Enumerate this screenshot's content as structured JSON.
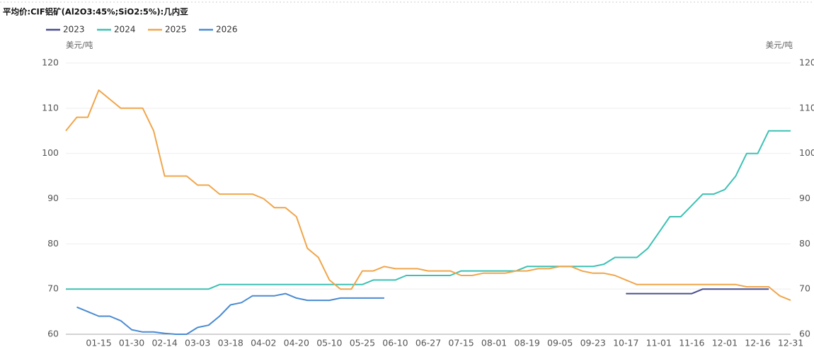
{
  "chart_data": {
    "type": "line",
    "title": "平均价:CIF铝矿(Al2O3:45%;SiO2:5%):几内亚",
    "y_label": "美元/吨",
    "y2_label": "美元/吨",
    "categories": [
      null,
      null,
      null,
      "01-15",
      null,
      null,
      "01-30",
      null,
      null,
      "02-14",
      null,
      null,
      "03-03",
      null,
      null,
      "03-18",
      null,
      null,
      "04-02",
      null,
      null,
      "04-20",
      null,
      null,
      "05-10",
      null,
      null,
      "05-25",
      null,
      null,
      "06-10",
      null,
      null,
      "06-27",
      null,
      null,
      "07-15",
      null,
      null,
      "08-01",
      null,
      null,
      "08-19",
      null,
      null,
      "09-05",
      null,
      null,
      "09-23",
      null,
      null,
      "10-17",
      null,
      null,
      "11-01",
      null,
      null,
      "11-16",
      null,
      null,
      "12-01",
      null,
      null,
      "12-16",
      null,
      null,
      "12-31"
    ],
    "series": [
      {
        "name": "2023",
        "color": "#4a4f8f",
        "values": [
          null,
          null,
          null,
          null,
          null,
          null,
          null,
          null,
          null,
          null,
          null,
          null,
          null,
          null,
          null,
          null,
          null,
          null,
          null,
          null,
          null,
          null,
          null,
          null,
          null,
          null,
          null,
          null,
          null,
          null,
          null,
          null,
          null,
          null,
          null,
          null,
          null,
          null,
          null,
          null,
          null,
          null,
          null,
          null,
          null,
          null,
          null,
          null,
          null,
          null,
          null,
          69,
          69,
          69,
          69,
          69,
          69,
          69,
          70,
          70,
          70,
          70,
          70,
          70,
          70,
          null,
          null
        ]
      },
      {
        "name": "2024",
        "color": "#3dc1b4",
        "values": [
          70,
          70,
          70,
          70,
          70,
          70,
          70,
          70,
          70,
          70,
          70,
          70,
          70,
          70,
          71,
          71,
          71,
          71,
          71,
          71,
          71,
          71,
          71,
          71,
          71,
          71,
          71,
          71,
          72,
          72,
          72,
          73,
          73,
          73,
          73,
          73,
          74,
          74,
          74,
          74,
          74,
          74,
          75,
          75,
          75,
          75,
          75,
          75,
          75,
          75.5,
          77,
          77,
          77,
          79,
          82.5,
          86,
          86,
          88.5,
          91,
          91,
          92,
          95,
          100,
          100,
          105,
          105,
          105
        ]
      },
      {
        "name": "2025",
        "color": "#f0a64b",
        "values": [
          105,
          108,
          108,
          114,
          112,
          110,
          110,
          110,
          105,
          95,
          95,
          95,
          93,
          93,
          91,
          91,
          91,
          91,
          90,
          88,
          88,
          86,
          79,
          77,
          72,
          70,
          70,
          74,
          74,
          75,
          74.5,
          74.5,
          74.5,
          74,
          74,
          74,
          73,
          73,
          73.5,
          73.5,
          73.5,
          74,
          74,
          74.5,
          74.5,
          75,
          75,
          74,
          73.5,
          73.5,
          73,
          72,
          71,
          71,
          71,
          71,
          71,
          71,
          71,
          71,
          71,
          71,
          70.5,
          70.5,
          70.5,
          68.5,
          67.5
        ]
      },
      {
        "name": "2026",
        "color": "#4a8bd2",
        "values": [
          null,
          66,
          65,
          64,
          64,
          63,
          61,
          60.5,
          60.5,
          60.2,
          60,
          60,
          61.5,
          62,
          64,
          66.5,
          67,
          68.5,
          68.5,
          68.5,
          69,
          68,
          67.5,
          67.5,
          67.5,
          68,
          68,
          68,
          68,
          68,
          null,
          null,
          null,
          null,
          null,
          null,
          null,
          null,
          null,
          null,
          null,
          null,
          null,
          null,
          null,
          null,
          null,
          null,
          null,
          null,
          null,
          null,
          null,
          null,
          null,
          null,
          null,
          null,
          null,
          null,
          null,
          null,
          null,
          null,
          null,
          null,
          null
        ]
      }
    ],
    "ylim": [
      60,
      120
    ],
    "yticks": [
      60,
      70,
      80,
      90,
      100,
      110,
      120
    ],
    "y2lim": [
      60,
      120
    ],
    "y2ticks": [
      60,
      70,
      80,
      90,
      100,
      110,
      120
    ],
    "grid": true
  }
}
